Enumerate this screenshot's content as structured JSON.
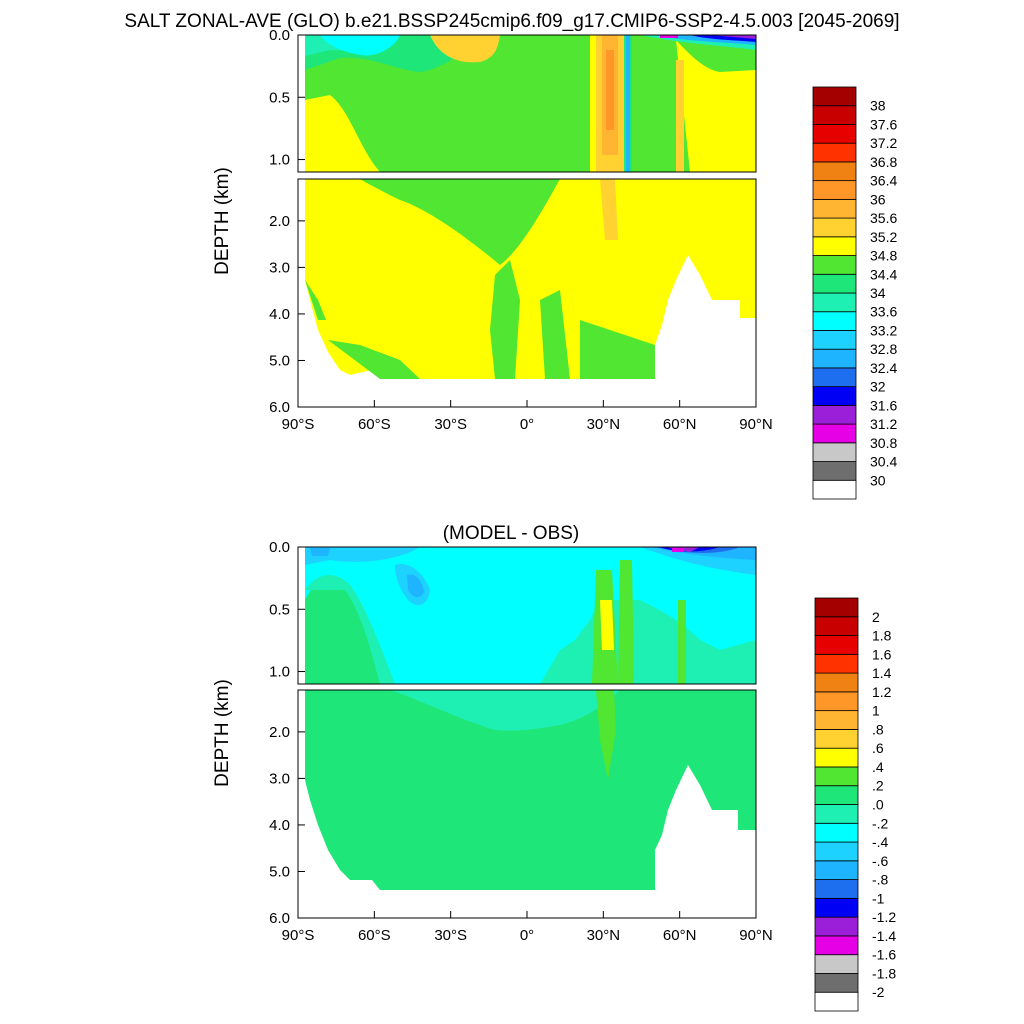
{
  "chart_data": [
    {
      "type": "heatmap",
      "title": "SALT ZONAL-AVE (GLO) b.e21.BSSP245cmip6.f09_g17.CMIP6-SSP2-4.5.003 [2045-2069]",
      "xlabel": "",
      "ylabel": "DEPTH (km)",
      "xlim": [
        -90,
        90
      ],
      "ylim_upper": [
        0,
        1.1
      ],
      "ylim_lower": [
        1.1,
        6
      ],
      "x_ticks": [
        {
          "value": -90,
          "label": "90°S"
        },
        {
          "value": -60,
          "label": "60°S"
        },
        {
          "value": -30,
          "label": "30°S"
        },
        {
          "value": 0,
          "label": "0°"
        },
        {
          "value": 30,
          "label": "30°N"
        },
        {
          "value": 60,
          "label": "60°N"
        },
        {
          "value": 90,
          "label": "90°N"
        }
      ],
      "y_ticks_upper": [
        {
          "value": 0,
          "label": "0.0"
        },
        {
          "value": 0.5,
          "label": "0.5"
        },
        {
          "value": 1.0,
          "label": "1.0"
        }
      ],
      "y_ticks_lower": [
        {
          "value": 2,
          "label": "2.0"
        },
        {
          "value": 3,
          "label": "3.0"
        },
        {
          "value": 4,
          "label": "4.0"
        },
        {
          "value": 5,
          "label": "5.0"
        },
        {
          "value": 6,
          "label": "6.0"
        }
      ],
      "colorbar": {
        "labels": [
          "30",
          "30.4",
          "30.8",
          "31.2",
          "31.6",
          "32",
          "32.4",
          "32.8",
          "33.2",
          "33.6",
          "34",
          "34.4",
          "34.8",
          "35.2",
          "35.6",
          "36",
          "36.4",
          "36.8",
          "37.2",
          "37.6",
          "38"
        ],
        "colors": [
          "#ffffff",
          "#6e6e6e",
          "#c8c8c8",
          "#e600e6",
          "#9b1fd9",
          "#0000f5",
          "#1e6ef0",
          "#1eb4ff",
          "#1ed2ff",
          "#00ffff",
          "#1ef0b4",
          "#1ee678",
          "#50e632",
          "#ffff00",
          "#ffd232",
          "#ffb432",
          "#ff9628",
          "#f08214",
          "#ff3200",
          "#e60000",
          "#c80000",
          "#a50000"
        ]
      }
    },
    {
      "type": "heatmap",
      "title": "(MODEL - OBS)",
      "xlabel": "",
      "ylabel": "DEPTH (km)",
      "xlim": [
        -90,
        90
      ],
      "ylim_upper": [
        0,
        1.1
      ],
      "ylim_lower": [
        1.1,
        6
      ],
      "x_ticks": [
        {
          "value": -90,
          "label": "90°S"
        },
        {
          "value": -60,
          "label": "60°S"
        },
        {
          "value": -30,
          "label": "30°S"
        },
        {
          "value": 0,
          "label": "0°"
        },
        {
          "value": 30,
          "label": "30°N"
        },
        {
          "value": 60,
          "label": "60°N"
        },
        {
          "value": 90,
          "label": "90°N"
        }
      ],
      "y_ticks_upper": [
        {
          "value": 0,
          "label": "0.0"
        },
        {
          "value": 0.5,
          "label": "0.5"
        },
        {
          "value": 1.0,
          "label": "1.0"
        }
      ],
      "y_ticks_lower": [
        {
          "value": 2,
          "label": "2.0"
        },
        {
          "value": 3,
          "label": "3.0"
        },
        {
          "value": 4,
          "label": "4.0"
        },
        {
          "value": 5,
          "label": "5.0"
        },
        {
          "value": 6,
          "label": "6.0"
        }
      ],
      "colorbar": {
        "labels": [
          "-2",
          "-1.8",
          "-1.6",
          "-1.4",
          "-1.2",
          "-1",
          "-.8",
          "-.6",
          "-.4",
          "-.2",
          ".0",
          ".2",
          ".4",
          ".6",
          ".8",
          "1",
          "1.2",
          "1.4",
          "1.6",
          "1.8",
          "2"
        ],
        "colors": [
          "#ffffff",
          "#6e6e6e",
          "#c8c8c8",
          "#e600e6",
          "#9b1fd9",
          "#0000f5",
          "#1e6ef0",
          "#1eb4ff",
          "#1ed2ff",
          "#00ffff",
          "#1ef0b4",
          "#1ee678",
          "#50e632",
          "#ffff00",
          "#ffd232",
          "#ffb432",
          "#ff9628",
          "#f08214",
          "#ff3200",
          "#e60000",
          "#c80000",
          "#a50000"
        ]
      }
    }
  ]
}
